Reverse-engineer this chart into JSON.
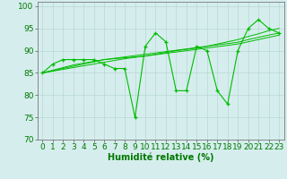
{
  "x": [
    0,
    1,
    2,
    3,
    4,
    5,
    6,
    7,
    8,
    9,
    10,
    11,
    12,
    13,
    14,
    15,
    16,
    17,
    18,
    19,
    20,
    21,
    22,
    23
  ],
  "y_main": [
    85,
    87,
    88,
    88,
    88,
    88,
    87,
    86,
    86,
    75,
    91,
    94,
    92,
    81,
    81,
    91,
    90,
    81,
    78,
    90,
    95,
    97,
    95,
    94
  ],
  "y_trend1": [
    85.0,
    85.5,
    86.0,
    86.5,
    87.0,
    87.5,
    88.0,
    88.3,
    88.6,
    88.9,
    89.2,
    89.5,
    89.8,
    90.1,
    90.4,
    90.7,
    91.0,
    91.3,
    91.6,
    91.9,
    92.5,
    93.0,
    93.5,
    94.0
  ],
  "y_trend2": [
    85.0,
    85.4,
    85.8,
    86.2,
    86.6,
    87.0,
    87.4,
    87.8,
    88.2,
    88.5,
    88.8,
    89.1,
    89.4,
    89.7,
    90.0,
    90.3,
    90.6,
    90.9,
    91.2,
    91.5,
    92.0,
    92.5,
    93.0,
    93.5
  ],
  "y_trend3": [
    85.0,
    85.6,
    86.2,
    86.8,
    87.2,
    87.6,
    88.0,
    88.2,
    88.4,
    88.6,
    88.8,
    89.2,
    89.6,
    90.0,
    90.3,
    90.6,
    91.0,
    91.5,
    92.0,
    92.5,
    93.2,
    93.8,
    94.5,
    95.0
  ],
  "xlim": [
    -0.5,
    23.5
  ],
  "ylim": [
    70,
    101
  ],
  "yticks": [
    70,
    75,
    80,
    85,
    90,
    95,
    100
  ],
  "xticks": [
    0,
    1,
    2,
    3,
    4,
    5,
    6,
    7,
    8,
    9,
    10,
    11,
    12,
    13,
    14,
    15,
    16,
    17,
    18,
    19,
    20,
    21,
    22,
    23
  ],
  "xlabel": "Humidité relative (%)",
  "bg_color": "#d5eeed",
  "line_color": "#00bb00",
  "grid_color": "#b8d8d4",
  "text_color": "#007700",
  "font_size_label": 7,
  "font_size_tick": 6.5
}
